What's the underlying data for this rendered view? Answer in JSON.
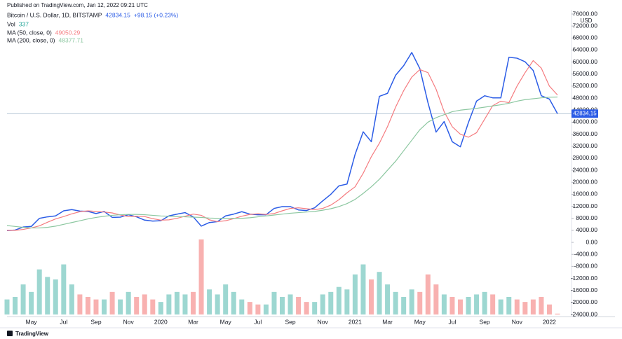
{
  "published": "Published on TradingView.com, Jan 12, 2022 09:21 UTC",
  "footer": "TradingView",
  "chart_data": {
    "type": "line",
    "title": "Bitcoin / U.S. Dollar, 1D, BITSTAMP",
    "change": "+98.15 (+0.23%)",
    "currency": "USD",
    "grid": false,
    "categories": [
      null,
      null,
      null,
      "May",
      null,
      null,
      null,
      "Jul",
      null,
      null,
      null,
      "Sep",
      null,
      null,
      null,
      "Nov",
      null,
      null,
      null,
      "2020",
      null,
      null,
      null,
      "Mar",
      null,
      null,
      null,
      "May",
      null,
      null,
      null,
      "Jul",
      null,
      null,
      null,
      "Sep",
      null,
      null,
      null,
      "Nov",
      null,
      null,
      null,
      "2021",
      null,
      null,
      null,
      "Mar",
      null,
      null,
      null,
      "May",
      null,
      null,
      null,
      "Jul",
      null,
      null,
      null,
      "Sep",
      null,
      null,
      null,
      "Nov",
      null,
      null,
      null,
      "2022",
      null
    ],
    "ylim": [
      -24000,
      76000
    ],
    "yticks": [
      {
        "value": -24000,
        "label": "-24000.00"
      },
      {
        "value": -20000,
        "label": "-20000.00"
      },
      {
        "value": -16000,
        "label": "-16000.00"
      },
      {
        "value": -12000,
        "label": "-12000.00"
      },
      {
        "value": -8000,
        "label": "-8000.00"
      },
      {
        "value": -4000,
        "label": "-4000.00"
      },
      {
        "value": 0,
        "label": "0.00"
      },
      {
        "value": 4000,
        "label": "4000.00"
      },
      {
        "value": 8000,
        "label": "8000.00"
      },
      {
        "value": 12000,
        "label": "12000.00"
      },
      {
        "value": 16000,
        "label": "16000.00"
      },
      {
        "value": 20000,
        "label": "20000.00"
      },
      {
        "value": 24000,
        "label": "24000.00"
      },
      {
        "value": 28000,
        "label": "28000.00"
      },
      {
        "value": 32000,
        "label": "32000.00"
      },
      {
        "value": 36000,
        "label": "36000.00"
      },
      {
        "value": 40000,
        "label": "40000.00"
      },
      {
        "value": 44000,
        "label": "44000.00"
      },
      {
        "value": 48000,
        "label": "48000.00"
      },
      {
        "value": 52000,
        "label": "52000.00"
      },
      {
        "value": 56000,
        "label": "56000.00"
      },
      {
        "value": 60000,
        "label": "60000.00"
      },
      {
        "value": 64000,
        "label": "64000.00"
      },
      {
        "value": 68000,
        "label": "68000.00"
      },
      {
        "value": 72000,
        "label": "72000.00"
      },
      {
        "value": 76000,
        "label": "76000.00"
      }
    ],
    "y2lim": [
      0,
      120000
    ],
    "series": [
      {
        "name": "Bitcoin / U.S. Dollar, 1D, BITSTAMP",
        "color": "#2b5ce6",
        "values": [
          3900,
          4100,
          5100,
          5300,
          8000,
          8500,
          8800,
          10500,
          10900,
          10400,
          10300,
          9600,
          10300,
          8300,
          8400,
          9200,
          8500,
          7400,
          7100,
          7200,
          8800,
          9400,
          9900,
          8500,
          5400,
          6600,
          6900,
          8800,
          9400,
          10200,
          9400,
          9200,
          9200,
          11300,
          11900,
          11900,
          10800,
          10600,
          11500,
          13800,
          16000,
          18800,
          19400,
          29300,
          36800,
          33500,
          48600,
          49600,
          55600,
          58800,
          63200,
          57800,
          46500,
          36700,
          40200,
          33500,
          31800,
          39900,
          47000,
          48800,
          48100,
          48100,
          61600,
          61300,
          60100,
          57200,
          48800,
          47700,
          42834.15
        ]
      },
      {
        "name": "MA (50, close, 0)",
        "color": "#f57c80",
        "values": [
          4000,
          4000,
          4300,
          4800,
          5500,
          6700,
          7800,
          8600,
          9500,
          10200,
          10500,
          10300,
          10100,
          9800,
          9100,
          8600,
          8700,
          8600,
          7900,
          7400,
          7500,
          8000,
          8700,
          9400,
          9000,
          7500,
          6900,
          7200,
          7900,
          8700,
          9300,
          9500,
          9300,
          9600,
          10500,
          11300,
          11500,
          11200,
          10900,
          11300,
          12400,
          14200,
          16500,
          18500,
          23000,
          28500,
          33000,
          38500,
          45000,
          50500,
          55000,
          57500,
          56500,
          51000,
          43500,
          38500,
          36000,
          35000,
          36500,
          41000,
          45500,
          47000,
          46500,
          52000,
          56500,
          60500,
          58000,
          52000,
          49050.29
        ]
      },
      {
        "name": "MA (200, close, 0)",
        "color": "#8cc7a0",
        "values": [
          5600,
          5300,
          5000,
          4800,
          4800,
          5000,
          5400,
          6000,
          6600,
          7200,
          7800,
          8300,
          8700,
          9000,
          9200,
          9300,
          9300,
          9200,
          9000,
          8800,
          8700,
          8600,
          8500,
          8400,
          8300,
          8100,
          8000,
          8000,
          8000,
          8000,
          8200,
          8500,
          8800,
          9100,
          9400,
          9700,
          9900,
          10100,
          10300,
          10700,
          11200,
          11900,
          12900,
          14300,
          16300,
          18500,
          21000,
          24000,
          27000,
          30500,
          34000,
          37500,
          40000,
          41500,
          42500,
          43500,
          44000,
          44300,
          44600,
          45000,
          45400,
          45800,
          46300,
          47000,
          47500,
          47800,
          48100,
          48300,
          48377.71
        ]
      },
      {
        "name": "Vol",
        "type": "bar",
        "axis": "y2",
        "color": "#26a69a",
        "down_color": "#ef5350",
        "values": [
          6000,
          7000,
          12000,
          9000,
          18000,
          15000,
          14000,
          20000,
          12000,
          8000,
          7000,
          6000,
          6000,
          9000,
          6000,
          9000,
          7000,
          8000,
          6000,
          5000,
          8000,
          9000,
          8000,
          9000,
          30000,
          10000,
          8000,
          12000,
          9000,
          6000,
          5000,
          4000,
          4000,
          9000,
          7000,
          8000,
          7000,
          5000,
          5000,
          8000,
          9000,
          11000,
          10000,
          16000,
          20000,
          14000,
          17000,
          12000,
          9000,
          7000,
          10000,
          9000,
          16000,
          12000,
          8000,
          7000,
          6000,
          7000,
          8000,
          9000,
          8000,
          6000,
          7000,
          6000,
          5000,
          6000,
          7000,
          4000,
          337
        ]
      }
    ]
  }
}
